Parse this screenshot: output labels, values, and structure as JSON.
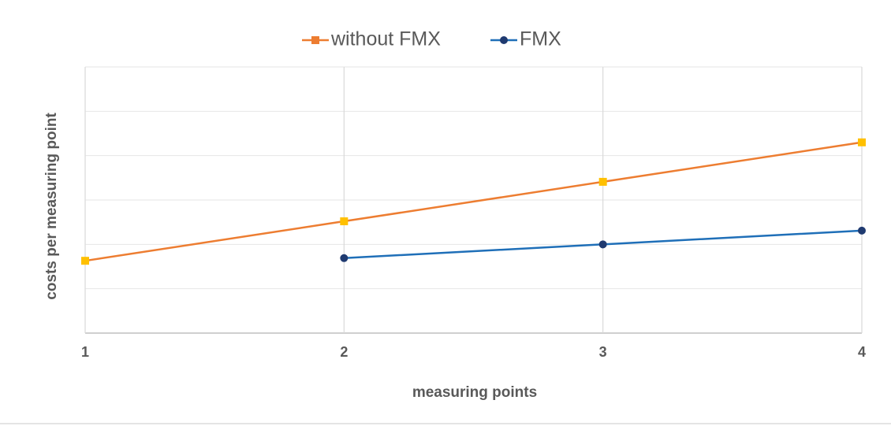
{
  "chart_data": {
    "type": "line",
    "x_label": "measuring points",
    "y_label": "costs per measuring point",
    "x": [
      1,
      2,
      3,
      4
    ],
    "xlim": [
      1,
      4
    ],
    "xticks": [
      1,
      2,
      3,
      4
    ],
    "ylim": [
      0,
      6
    ],
    "yticks": [
      0,
      1,
      2,
      3,
      4,
      5,
      6
    ],
    "grid": true,
    "legend": "top",
    "series": [
      {
        "name": "without FMX",
        "color": "#ed7d31",
        "marker": "square",
        "marker_color": "#ffc000",
        "values": [
          1.63,
          2.52,
          3.41,
          4.3
        ]
      },
      {
        "name": "FMX",
        "color": "#1f6fb8",
        "marker": "circle",
        "marker_color": "#1f3a70",
        "values": [
          null,
          1.69,
          2.0,
          2.31
        ]
      }
    ]
  }
}
